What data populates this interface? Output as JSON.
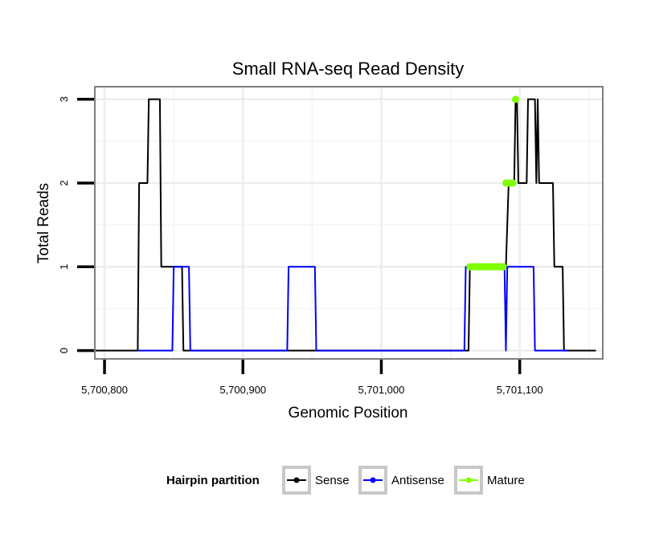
{
  "chart_data": {
    "type": "line",
    "title": "Small RNA-seq Read Density",
    "xlabel": "Genomic Position",
    "ylabel": "Total Reads",
    "xlim": [
      5700793,
      5701160
    ],
    "ylim": [
      -0.1,
      3.15
    ],
    "x_ticks": [
      5700800,
      5700900,
      5701000,
      5701100
    ],
    "x_tick_labels": [
      "5,700,800",
      "5,700,900",
      "5,701,000",
      "5,701,100"
    ],
    "y_ticks": [
      0,
      1,
      2,
      3
    ],
    "y_tick_labels": [
      "0",
      "1",
      "2",
      "3"
    ],
    "grid": true,
    "legend": {
      "title": "Hairpin partition",
      "position": "bottom",
      "entries": [
        "Sense",
        "Antisense",
        "Mature"
      ]
    },
    "series": [
      {
        "name": "Sense",
        "color": "#000000",
        "kind": "line",
        "x": [
          5700788,
          5700824,
          5700825,
          5700831,
          5700832,
          5700840,
          5700841,
          5700849,
          5700850,
          5700856,
          5700857,
          5700860,
          5701063,
          5701064,
          5701090,
          5701092,
          5701096,
          5701097,
          5701098,
          5701099,
          5701100,
          5701105,
          5701106,
          5701111,
          5701112,
          5701113,
          5701114,
          5701124,
          5701125,
          5701131,
          5701132,
          5701155
        ],
        "y": [
          0,
          0,
          2,
          2,
          3,
          3,
          1,
          1,
          1,
          1,
          0,
          0,
          0,
          1,
          1,
          2,
          2,
          3,
          3,
          2,
          2,
          2,
          3,
          3,
          2,
          3,
          2,
          2,
          1,
          1,
          0,
          0
        ]
      },
      {
        "name": "Antisense",
        "color": "#0000ff",
        "kind": "line",
        "x": [
          5700824,
          5700849,
          5700850,
          5700861,
          5700862,
          5700932,
          5700933,
          5700952,
          5700953,
          5701060,
          5701061,
          5701089,
          5701090,
          5701091,
          5701110,
          5701111,
          5701135
        ],
        "y": [
          0,
          0,
          1,
          1,
          0,
          0,
          1,
          1,
          0,
          0,
          1,
          1,
          0,
          1,
          1,
          0,
          0
        ]
      },
      {
        "name": "Mature",
        "color": "#7fff00",
        "kind": "points",
        "x": [
          5701064,
          5701066,
          5701068,
          5701070,
          5701072,
          5701074,
          5701076,
          5701078,
          5701080,
          5701082,
          5701084,
          5701086,
          5701088,
          5701090,
          5701092,
          5701094,
          5701095,
          5701097
        ],
        "y": [
          1,
          1,
          1,
          1,
          1,
          1,
          1,
          1,
          1,
          1,
          1,
          1,
          1,
          2,
          2,
          2,
          2,
          3
        ]
      }
    ]
  }
}
